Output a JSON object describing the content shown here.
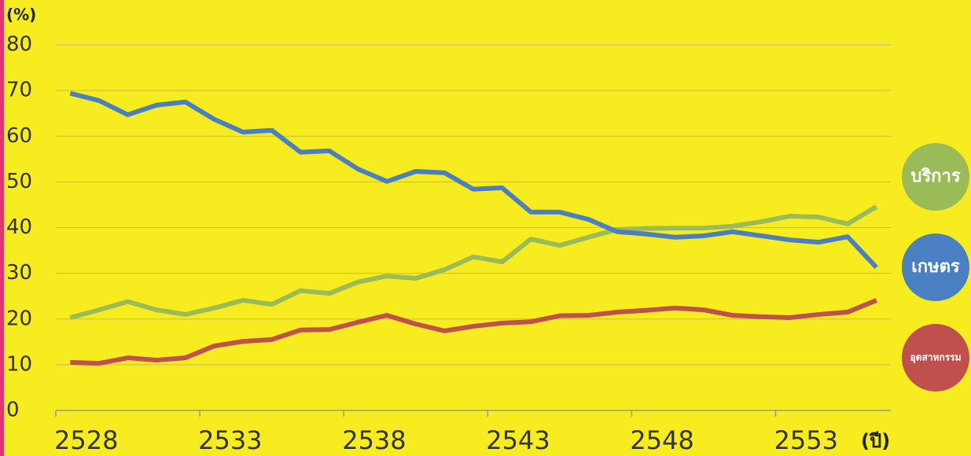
{
  "chart_data": {
    "type": "line",
    "y_label": "(%)",
    "x_label": "(ปี)",
    "categories": [
      "2528",
      null,
      null,
      null,
      null,
      "2533",
      null,
      null,
      null,
      null,
      "2538",
      null,
      null,
      null,
      null,
      "2543",
      null,
      null,
      null,
      null,
      "2548",
      null,
      null,
      null,
      null,
      "2553",
      null,
      null,
      null
    ],
    "ylim": [
      0,
      80
    ],
    "yticks": [
      0,
      10,
      20,
      30,
      40,
      50,
      60,
      70,
      80
    ],
    "grid": true,
    "series": [
      {
        "name": "บริการ",
        "color": "#9bbb59",
        "values": [
          20.3,
          22,
          23.8,
          22,
          21,
          22.4,
          24.1,
          23.2,
          26.2,
          25.6,
          28.1,
          29.4,
          28.9,
          30.8,
          33.6,
          32.5,
          37.5,
          36.1,
          37.9,
          39.6,
          39.8,
          39.9,
          39.9,
          40.3,
          41.3,
          42.5,
          42.3,
          40.8,
          44.6
        ]
      },
      {
        "name": "เกษตร",
        "color": "#4a7fc1",
        "values": [
          69.4,
          67.8,
          64.7,
          66.8,
          67.5,
          63.7,
          60.9,
          61.3,
          56.5,
          56.8,
          52.8,
          50.1,
          52.3,
          52,
          48.4,
          48.7,
          43.4,
          43.4,
          41.8,
          39.1,
          38.6,
          37.9,
          38.2,
          39.1,
          38.2,
          37.3,
          36.8,
          38,
          31.3
        ]
      },
      {
        "name": "อุตสาหกรรม",
        "color": "#c0504d",
        "values": [
          10.5,
          10.3,
          11.5,
          11,
          11.5,
          14.1,
          15.1,
          15.5,
          17.6,
          17.7,
          19.3,
          20.8,
          18.9,
          17.4,
          18.4,
          19.1,
          19.4,
          20.7,
          20.8,
          21.5,
          21.9,
          22.4,
          22,
          20.8,
          20.5,
          20.3,
          21,
          21.5,
          24.1
        ]
      }
    ]
  }
}
